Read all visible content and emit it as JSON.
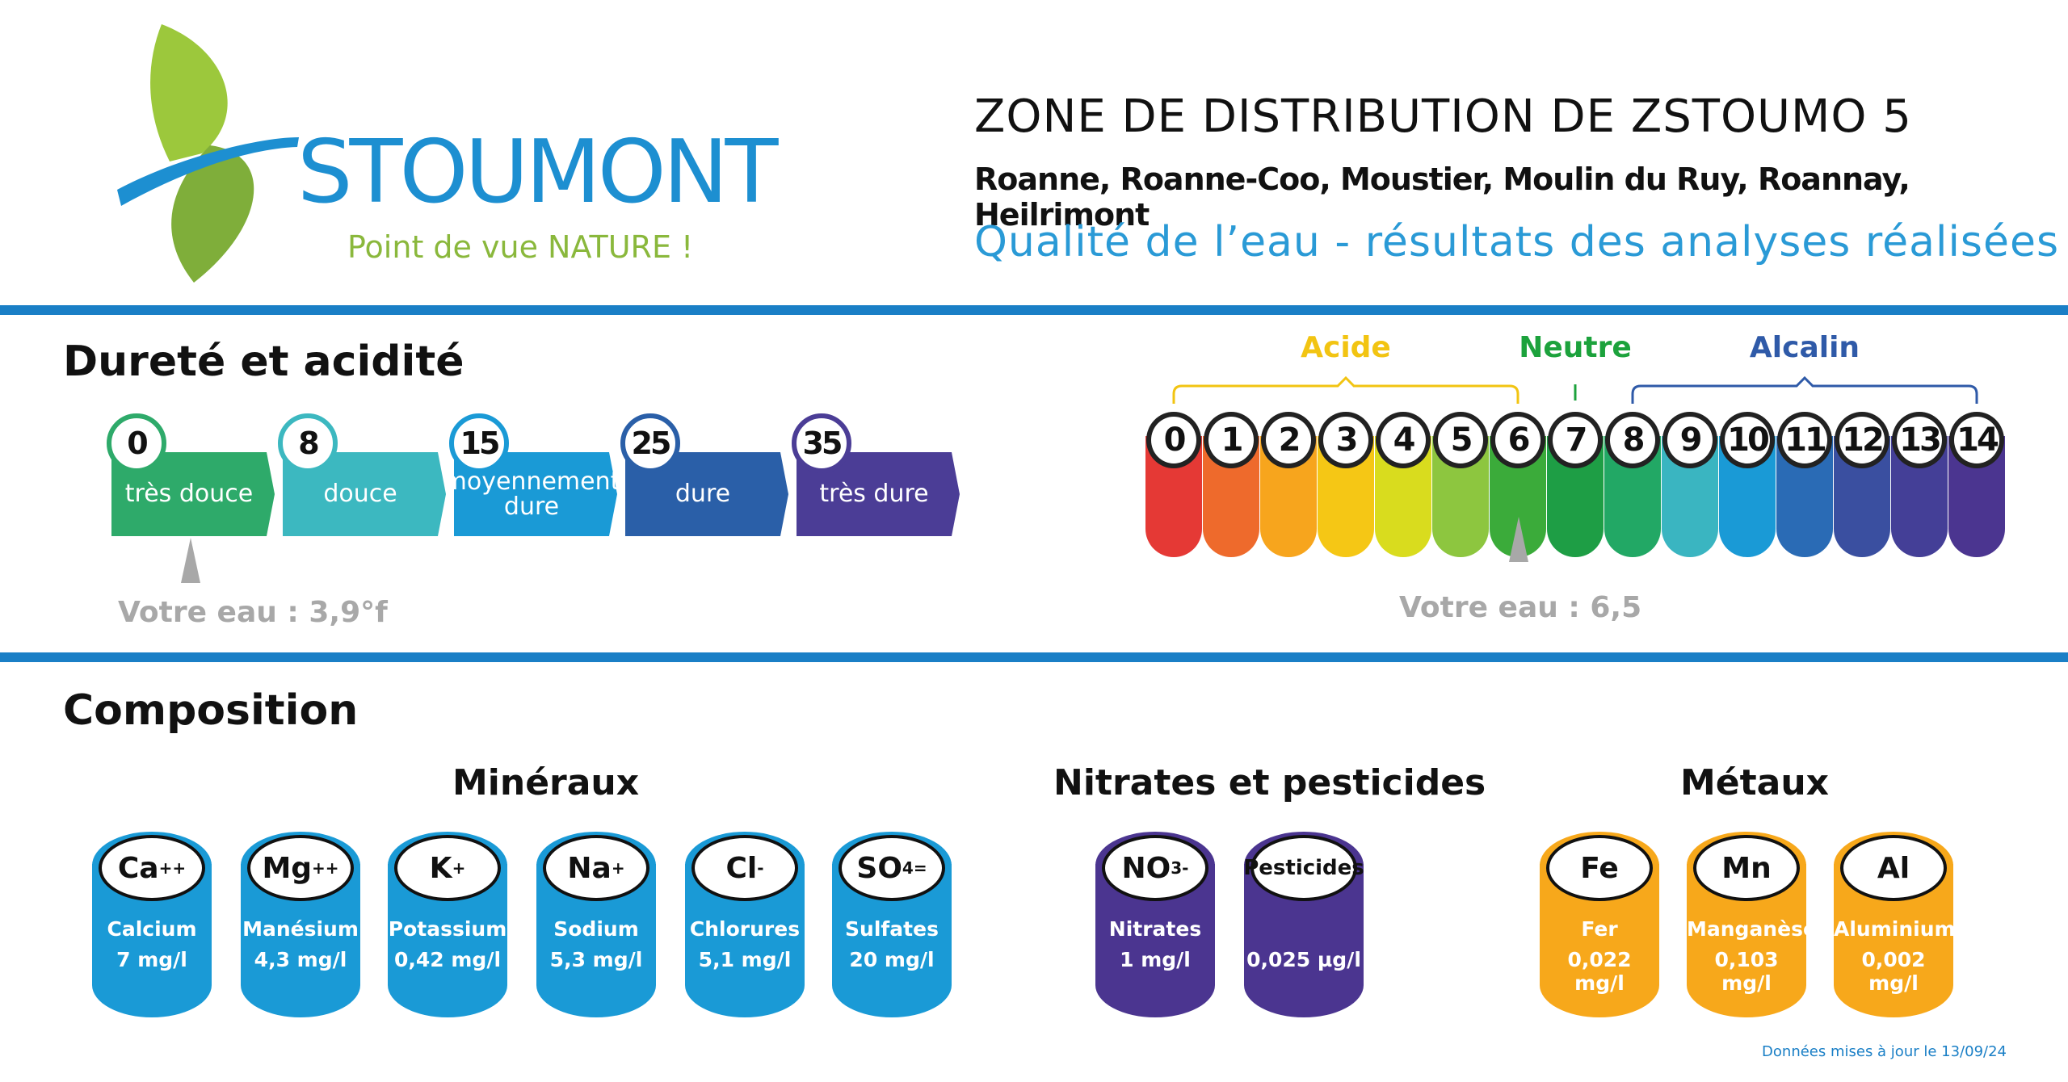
{
  "header": {
    "logo_name": "STOUMONT",
    "logo_tagline": "Point de vue NATURE !",
    "zone_title": "ZONE DE DISTRIBUTION DE ZSTOUMO 5",
    "zone_towns": "Roanne, Roanne-Coo, Moustier, Moulin du Ruy, Roannay, Heilrimont",
    "zone_subtitle": "Qualité de l’eau - résultats des analyses réalisées"
  },
  "hardness": {
    "section_title": "Dureté et acidité",
    "segments": [
      {
        "threshold": "0",
        "label": "très douce",
        "color": "#2eaa6a"
      },
      {
        "threshold": "8",
        "label": "douce",
        "color": "#3cb8c0"
      },
      {
        "threshold": "15",
        "label": "moyennement dure",
        "color": "#1a9ad6"
      },
      {
        "threshold": "25",
        "label": "dure",
        "color": "#2a5fa8"
      },
      {
        "threshold": "35",
        "label": "très dure",
        "color": "#4b3d96"
      }
    ],
    "your_water": "Votre eau : 3,9°f",
    "your_value": 3.9
  },
  "ph": {
    "groups": [
      {
        "label": "Acide",
        "color": "#f2c412"
      },
      {
        "label": "Neutre",
        "color": "#1ca23c"
      },
      {
        "label": "Alcalin",
        "color": "#2f5aa8"
      }
    ],
    "scale": [
      {
        "n": "0",
        "color": "#e53935"
      },
      {
        "n": "1",
        "color": "#ee6a2c"
      },
      {
        "n": "2",
        "color": "#f7a51d"
      },
      {
        "n": "3",
        "color": "#f5c715"
      },
      {
        "n": "4",
        "color": "#d9dc1e"
      },
      {
        "n": "5",
        "color": "#8dc63f"
      },
      {
        "n": "6",
        "color": "#3bab3a"
      },
      {
        "n": "7",
        "color": "#1e9e45"
      },
      {
        "n": "8",
        "color": "#22a865"
      },
      {
        "n": "9",
        "color": "#3ab5c1"
      },
      {
        "n": "10",
        "color": "#1a9ad6"
      },
      {
        "n": "11",
        "color": "#2a6bb5"
      },
      {
        "n": "12",
        "color": "#3a4fa0"
      },
      {
        "n": "13",
        "color": "#443f97"
      },
      {
        "n": "14",
        "color": "#4b3590"
      }
    ],
    "your_water": "Votre eau : 6,5",
    "your_value": 6.5
  },
  "composition": {
    "section_title": "Composition",
    "groups": [
      {
        "title": "Minéraux",
        "color": "#1a9ad6",
        "items": [
          {
            "symbol": "Ca",
            "charge": "++",
            "charge_pos": "sup",
            "name": "Calcium",
            "value": "7 mg/l"
          },
          {
            "symbol": "Mg",
            "charge": "++",
            "charge_pos": "sup",
            "name": "Manésium",
            "value": "4,3 mg/l"
          },
          {
            "symbol": "K",
            "charge": "+",
            "charge_pos": "sup",
            "name": "Potassium",
            "value": "0,42 mg/l"
          },
          {
            "symbol": "Na",
            "charge": "+",
            "charge_pos": "sup",
            "name": "Sodium",
            "value": "5,3 mg/l"
          },
          {
            "symbol": "Cl",
            "charge": "-",
            "charge_pos": "sup",
            "name": "Chlorures",
            "value": "5,1 mg/l"
          },
          {
            "symbol": "SO",
            "sub": "4",
            "charge": "=",
            "charge_pos": "sup",
            "name": "Sulfates",
            "value": "20 mg/l"
          }
        ]
      },
      {
        "title": "Nitrates et pesticides",
        "color": "#4b3590",
        "items": [
          {
            "symbol": "NO",
            "sub": "3",
            "charge": "-",
            "charge_pos": "sup",
            "name": "Nitrates",
            "value": "1 mg/l"
          },
          {
            "symbol": "Pesticides",
            "small": true,
            "name": "",
            "value": "0,025 µg/l"
          }
        ]
      },
      {
        "title": "Métaux",
        "color": "#f7a81b",
        "items": [
          {
            "symbol": "Fe",
            "name": "Fer",
            "value": "0,022 mg/l"
          },
          {
            "symbol": "Mn",
            "name": "Manganèse",
            "value": "0,103 mg/l"
          },
          {
            "symbol": "Al",
            "name": "Aluminium",
            "value": "0,002 mg/l"
          }
        ]
      }
    ]
  },
  "footer": {
    "updated": "Données mises à jour le 13/09/24"
  }
}
